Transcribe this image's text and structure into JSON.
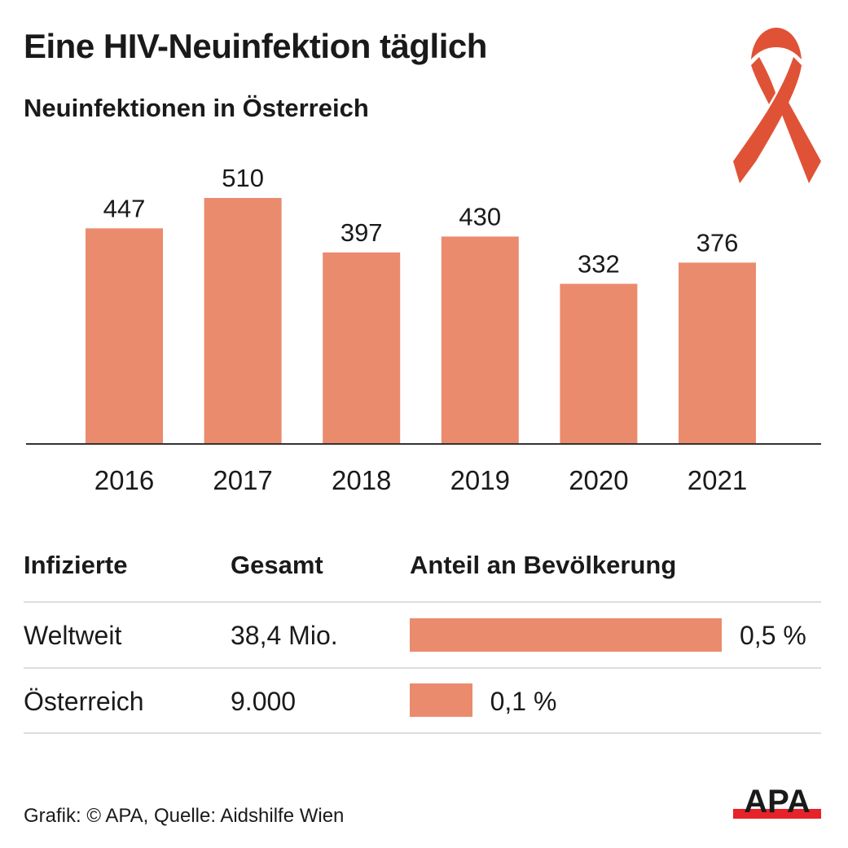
{
  "header": {
    "title": "Eine HIV-Neuinfektion täglich",
    "subtitle": "Neuinfektionen in Österreich",
    "icon": "aids-awareness-ribbon-icon"
  },
  "colors": {
    "bar": "#ea8b6e",
    "ribbon": "#e05236",
    "text": "#1a1a1a",
    "apa_red": "#e4232b"
  },
  "chart_data": {
    "type": "bar",
    "title": "Neuinfektionen in Österreich",
    "categories": [
      "2016",
      "2017",
      "2018",
      "2019",
      "2020",
      "2021"
    ],
    "values": [
      447,
      510,
      397,
      430,
      332,
      376
    ],
    "xlabel": "",
    "ylabel": "",
    "ylim": [
      0,
      510
    ],
    "grid": false,
    "data_labels": true
  },
  "table": {
    "headers": [
      "Infizierte",
      "Gesamt",
      "Anteil an Bevölkerung"
    ],
    "rows": [
      {
        "region": "Weltweit",
        "total": "38,4 Mio.",
        "share_label": "0,5 %",
        "share_value": 0.5
      },
      {
        "region": "Österreich",
        "total": "9.000",
        "share_label": "0,1 %",
        "share_value": 0.1
      }
    ],
    "share_max": 0.5
  },
  "footer": {
    "credit": "Grafik: © APA, Quelle: Aidshilfe Wien",
    "logo_text": "APA"
  }
}
